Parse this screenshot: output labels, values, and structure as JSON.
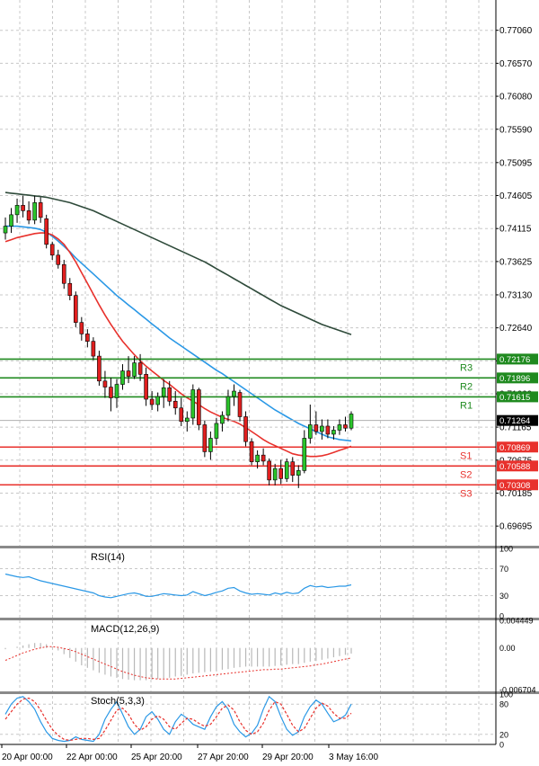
{
  "chart_data": [
    {
      "type": "candlestick",
      "pane": "price",
      "price_ticks": [
        "0.77060",
        "0.76570",
        "0.76080",
        "0.75590",
        "0.75095",
        "0.74605",
        "0.74115",
        "0.73625",
        "0.73130",
        "0.72640",
        "0.72150",
        "0.71660",
        "0.71165",
        "0.70675",
        "0.70185",
        "0.69695"
      ],
      "ylim": [
        0.6943,
        0.7751
      ],
      "x_labels": [
        "20 Apr 00:00",
        "22 Apr 00:00",
        "25 Apr 20:00",
        "27 Apr 20:00",
        "29 Apr 20:00",
        "3 May 16:00"
      ],
      "current_price": "0.71264",
      "candles": [
        {
          "o": 0.7405,
          "h": 0.7428,
          "l": 0.7395,
          "c": 0.7415
        },
        {
          "o": 0.7415,
          "h": 0.7442,
          "l": 0.7405,
          "c": 0.7432
        },
        {
          "o": 0.7432,
          "h": 0.7456,
          "l": 0.742,
          "c": 0.7446
        },
        {
          "o": 0.7446,
          "h": 0.746,
          "l": 0.7428,
          "c": 0.7438
        },
        {
          "o": 0.7438,
          "h": 0.7452,
          "l": 0.7418,
          "c": 0.7424
        },
        {
          "o": 0.7424,
          "h": 0.746,
          "l": 0.7418,
          "c": 0.745
        },
        {
          "o": 0.745,
          "h": 0.7458,
          "l": 0.742,
          "c": 0.7428
        },
        {
          "o": 0.7426,
          "h": 0.7432,
          "l": 0.7382,
          "c": 0.7388
        },
        {
          "o": 0.7388,
          "h": 0.7392,
          "l": 0.7365,
          "c": 0.7372
        },
        {
          "o": 0.7372,
          "h": 0.738,
          "l": 0.7352,
          "c": 0.7358
        },
        {
          "o": 0.7358,
          "h": 0.7365,
          "l": 0.7322,
          "c": 0.733
        },
        {
          "o": 0.733,
          "h": 0.7338,
          "l": 0.7305,
          "c": 0.7312
        },
        {
          "o": 0.7312,
          "h": 0.7318,
          "l": 0.7265,
          "c": 0.7272
        },
        {
          "o": 0.7272,
          "h": 0.728,
          "l": 0.7245,
          "c": 0.7255
        },
        {
          "o": 0.7255,
          "h": 0.7262,
          "l": 0.7235,
          "c": 0.7244
        },
        {
          "o": 0.7244,
          "h": 0.725,
          "l": 0.7216,
          "c": 0.7222
        },
        {
          "o": 0.7222,
          "h": 0.723,
          "l": 0.7178,
          "c": 0.7185
        },
        {
          "o": 0.7185,
          "h": 0.72,
          "l": 0.716,
          "c": 0.7176
        },
        {
          "o": 0.7176,
          "h": 0.719,
          "l": 0.714,
          "c": 0.716
        },
        {
          "o": 0.716,
          "h": 0.7188,
          "l": 0.7145,
          "c": 0.718
        },
        {
          "o": 0.718,
          "h": 0.721,
          "l": 0.7172,
          "c": 0.72
        },
        {
          "o": 0.72,
          "h": 0.7222,
          "l": 0.7182,
          "c": 0.7192
        },
        {
          "o": 0.7192,
          "h": 0.7222,
          "l": 0.7188,
          "c": 0.7212
        },
        {
          "o": 0.7212,
          "h": 0.7225,
          "l": 0.7185,
          "c": 0.7195
        },
        {
          "o": 0.7195,
          "h": 0.7205,
          "l": 0.7148,
          "c": 0.7158
        },
        {
          "o": 0.7158,
          "h": 0.717,
          "l": 0.7142,
          "c": 0.715
        },
        {
          "o": 0.715,
          "h": 0.7168,
          "l": 0.714,
          "c": 0.7162
        },
        {
          "o": 0.7162,
          "h": 0.7188,
          "l": 0.7145,
          "c": 0.7175
        },
        {
          "o": 0.7175,
          "h": 0.7185,
          "l": 0.7148,
          "c": 0.7155
        },
        {
          "o": 0.7155,
          "h": 0.717,
          "l": 0.7135,
          "c": 0.7145
        },
        {
          "o": 0.7145,
          "h": 0.716,
          "l": 0.7118,
          "c": 0.7125
        },
        {
          "o": 0.7125,
          "h": 0.714,
          "l": 0.711,
          "c": 0.713
        },
        {
          "o": 0.713,
          "h": 0.718,
          "l": 0.712,
          "c": 0.7172
        },
        {
          "o": 0.7172,
          "h": 0.7175,
          "l": 0.7112,
          "c": 0.712
        },
        {
          "o": 0.712,
          "h": 0.7126,
          "l": 0.7072,
          "c": 0.708
        },
        {
          "o": 0.708,
          "h": 0.711,
          "l": 0.7068,
          "c": 0.71
        },
        {
          "o": 0.71,
          "h": 0.713,
          "l": 0.709,
          "c": 0.7122
        },
        {
          "o": 0.7122,
          "h": 0.714,
          "l": 0.711,
          "c": 0.7134
        },
        {
          "o": 0.7134,
          "h": 0.7172,
          "l": 0.7125,
          "c": 0.7162
        },
        {
          "o": 0.7162,
          "h": 0.718,
          "l": 0.7148,
          "c": 0.717
        },
        {
          "o": 0.7168,
          "h": 0.7172,
          "l": 0.7125,
          "c": 0.7132
        },
        {
          "o": 0.7132,
          "h": 0.714,
          "l": 0.7088,
          "c": 0.7095
        },
        {
          "o": 0.7095,
          "h": 0.71,
          "l": 0.706,
          "c": 0.7065
        },
        {
          "o": 0.7065,
          "h": 0.7082,
          "l": 0.7055,
          "c": 0.7075
        },
        {
          "o": 0.7075,
          "h": 0.7085,
          "l": 0.706,
          "c": 0.7066
        },
        {
          "o": 0.7066,
          "h": 0.707,
          "l": 0.703,
          "c": 0.7038
        },
        {
          "o": 0.7038,
          "h": 0.7062,
          "l": 0.703,
          "c": 0.7055
        },
        {
          "o": 0.7055,
          "h": 0.7068,
          "l": 0.7032,
          "c": 0.704
        },
        {
          "o": 0.704,
          "h": 0.707,
          "l": 0.7035,
          "c": 0.7065
        },
        {
          "o": 0.7065,
          "h": 0.7072,
          "l": 0.7035,
          "c": 0.7045
        },
        {
          "o": 0.7045,
          "h": 0.706,
          "l": 0.7026,
          "c": 0.7052
        },
        {
          "o": 0.7052,
          "h": 0.7112,
          "l": 0.7048,
          "c": 0.71
        },
        {
          "o": 0.71,
          "h": 0.715,
          "l": 0.7092,
          "c": 0.712
        },
        {
          "o": 0.712,
          "h": 0.714,
          "l": 0.7105,
          "c": 0.711
        },
        {
          "o": 0.711,
          "h": 0.7128,
          "l": 0.7098,
          "c": 0.7118
        },
        {
          "o": 0.7118,
          "h": 0.7128,
          "l": 0.71,
          "c": 0.7106
        },
        {
          "o": 0.7106,
          "h": 0.7118,
          "l": 0.7098,
          "c": 0.7112
        },
        {
          "o": 0.7112,
          "h": 0.7128,
          "l": 0.7105,
          "c": 0.712
        },
        {
          "o": 0.712,
          "h": 0.7132,
          "l": 0.711,
          "c": 0.7115
        },
        {
          "o": 0.7115,
          "h": 0.714,
          "l": 0.7112,
          "c": 0.7136
        }
      ],
      "moving_averages": [
        {
          "color": "#2e4a3a",
          "values": [
            0.7465,
            0.7464,
            0.7463,
            0.7462,
            0.7461,
            0.746,
            0.7459,
            0.7458,
            0.7456,
            0.7454,
            0.7452,
            0.745,
            0.7447,
            0.7444,
            0.7441,
            0.7438,
            0.7434,
            0.743,
            0.7426,
            0.7422,
            0.7418,
            0.7414,
            0.741,
            0.7406,
            0.7402,
            0.7398,
            0.7394,
            0.739,
            0.7386,
            0.7382,
            0.7378,
            0.7374,
            0.737,
            0.7366,
            0.7362,
            0.7357,
            0.7352,
            0.7347,
            0.7342,
            0.7337,
            0.7332,
            0.7327,
            0.7322,
            0.7317,
            0.7312,
            0.7307,
            0.7302,
            0.7297,
            0.7293,
            0.7289,
            0.7285,
            0.7281,
            0.7277,
            0.7273,
            0.7269,
            0.7266,
            0.7263,
            0.726,
            0.7257,
            0.7254
          ]
        },
        {
          "color": "#2a98e6",
          "values": [
            0.7415,
            0.7415,
            0.7415,
            0.7414,
            0.7413,
            0.7412,
            0.741,
            0.7406,
            0.74,
            0.7393,
            0.7385,
            0.7377,
            0.7368,
            0.736,
            0.7352,
            0.7344,
            0.7336,
            0.7328,
            0.732,
            0.7312,
            0.7305,
            0.7298,
            0.7291,
            0.7284,
            0.7277,
            0.727,
            0.7263,
            0.7256,
            0.7249,
            0.7243,
            0.7237,
            0.7231,
            0.7225,
            0.7219,
            0.7213,
            0.7207,
            0.7201,
            0.7196,
            0.719,
            0.7184,
            0.7178,
            0.7172,
            0.7166,
            0.716,
            0.7154,
            0.7148,
            0.7142,
            0.7137,
            0.7132,
            0.7127,
            0.7122,
            0.7118,
            0.7114,
            0.711,
            0.7106,
            0.7102,
            0.71,
            0.7098,
            0.7097,
            0.7096
          ]
        },
        {
          "color": "#e8312c",
          "values": [
            0.7392,
            0.7395,
            0.7398,
            0.74,
            0.7402,
            0.7404,
            0.7405,
            0.7405,
            0.7402,
            0.7396,
            0.7388,
            0.7376,
            0.7362,
            0.7346,
            0.733,
            0.7314,
            0.7298,
            0.7283,
            0.7269,
            0.7256,
            0.7244,
            0.7234,
            0.7224,
            0.7215,
            0.7207,
            0.72,
            0.7193,
            0.7186,
            0.718,
            0.7173,
            0.7166,
            0.716,
            0.7155,
            0.715,
            0.7144,
            0.7139,
            0.7135,
            0.7131,
            0.7128,
            0.7125,
            0.7121,
            0.7116,
            0.711,
            0.7104,
            0.7098,
            0.7093,
            0.7089,
            0.7085,
            0.7081,
            0.7077,
            0.7075,
            0.7074,
            0.7073,
            0.7073,
            0.7074,
            0.7076,
            0.7079,
            0.7082,
            0.7085,
            0.7088
          ]
        }
      ],
      "levels": [
        {
          "label": "R3",
          "value": "0.72176",
          "price": 0.72176,
          "type": "resistance"
        },
        {
          "label": "R2",
          "value": "0.71896",
          "price": 0.71896,
          "type": "resistance"
        },
        {
          "label": "R1",
          "value": "0.71615",
          "price": 0.71615,
          "type": "resistance"
        },
        {
          "label": "S1",
          "value": "0.70869",
          "price": 0.70869,
          "type": "support"
        },
        {
          "label": "S2",
          "value": "0.70588",
          "price": 0.70588,
          "type": "support"
        },
        {
          "label": "S3",
          "value": "0.70308",
          "price": 0.70308,
          "type": "support"
        }
      ]
    },
    {
      "type": "line",
      "pane": "rsi",
      "title": "RSI(14)",
      "ticks": [
        "100",
        "70",
        "30",
        "0"
      ],
      "ylim": [
        0,
        100
      ],
      "series": [
        {
          "color": "#2a98e6",
          "values": [
            62,
            60,
            58,
            57,
            58,
            55,
            52,
            50,
            48,
            46,
            44,
            42,
            40,
            38,
            36,
            34,
            30,
            28,
            27,
            29,
            31,
            33,
            34,
            32,
            29,
            29,
            31,
            33,
            32,
            31,
            30,
            31,
            36,
            33,
            30,
            32,
            35,
            37,
            41,
            42,
            37,
            34,
            32,
            33,
            32,
            31,
            34,
            32,
            35,
            33,
            34,
            41,
            45,
            43,
            44,
            42,
            43,
            44,
            44,
            46
          ]
        }
      ]
    },
    {
      "type": "line+histogram",
      "pane": "macd",
      "title": "MACD(12,26,9)",
      "ticks": [
        "0.004449",
        "0.00",
        "-0.006704"
      ],
      "ylim": [
        -0.006704,
        0.004449
      ],
      "histogram": [
        -0.0002,
        0.0,
        0.0002,
        0.0004,
        0.0006,
        0.0008,
        0.0008,
        0.0006,
        0.0002,
        -0.0004,
        -0.001,
        -0.0016,
        -0.0022,
        -0.0028,
        -0.0032,
        -0.0036,
        -0.004,
        -0.0043,
        -0.0046,
        -0.0048,
        -0.005,
        -0.0051,
        -0.0052,
        -0.0052,
        -0.0052,
        -0.0051,
        -0.005,
        -0.0049,
        -0.0048,
        -0.0046,
        -0.0045,
        -0.0043,
        -0.0041,
        -0.004,
        -0.0039,
        -0.0038,
        -0.0037,
        -0.0035,
        -0.0034,
        -0.0032,
        -0.0031,
        -0.003,
        -0.003,
        -0.003,
        -0.003,
        -0.003,
        -0.0029,
        -0.0028,
        -0.0027,
        -0.0026,
        -0.0026,
        -0.0024,
        -0.0022,
        -0.0021,
        -0.0019,
        -0.0017,
        -0.0015,
        -0.0013,
        -0.0011,
        -0.0009
      ],
      "signal": {
        "color": "#e8312c",
        "values": [
          -0.002,
          -0.0016,
          -0.0012,
          -0.0008,
          -0.0005,
          -0.0002,
          0.0,
          0.0002,
          0.0002,
          0.0001,
          -0.0001,
          -0.0003,
          -0.0006,
          -0.001,
          -0.0014,
          -0.0018,
          -0.0022,
          -0.0026,
          -0.003,
          -0.0034,
          -0.0038,
          -0.0041,
          -0.0044,
          -0.0046,
          -0.0048,
          -0.0049,
          -0.005,
          -0.005,
          -0.005,
          -0.005,
          -0.0049,
          -0.0048,
          -0.0047,
          -0.0046,
          -0.0045,
          -0.0044,
          -0.0043,
          -0.0042,
          -0.0041,
          -0.004,
          -0.0039,
          -0.0038,
          -0.0037,
          -0.0036,
          -0.0035,
          -0.0035,
          -0.0034,
          -0.0034,
          -0.0033,
          -0.0032,
          -0.0031,
          -0.003,
          -0.0029,
          -0.0027,
          -0.0026,
          -0.0024,
          -0.0022,
          -0.002,
          -0.0018,
          -0.0016
        ]
      }
    },
    {
      "type": "line",
      "pane": "stoch",
      "title": "Stoch(5,3,3)",
      "ticks": [
        "100",
        "80",
        "20",
        "0"
      ],
      "ylim": [
        0,
        100
      ],
      "series": [
        {
          "color": "#2a98e6",
          "values": [
            60,
            80,
            92,
            95,
            85,
            70,
            45,
            25,
            12,
            8,
            6,
            8,
            15,
            10,
            8,
            6,
            20,
            50,
            70,
            85,
            60,
            35,
            20,
            30,
            55,
            65,
            50,
            30,
            20,
            45,
            60,
            52,
            40,
            35,
            30,
            55,
            75,
            85,
            70,
            40,
            25,
            15,
            22,
            38,
            70,
            95,
            85,
            55,
            30,
            18,
            25,
            55,
            75,
            88,
            80,
            62,
            45,
            50,
            58,
            80
          ]
        },
        {
          "color": "#e8312c",
          "values": [
            50,
            65,
            80,
            90,
            92,
            85,
            68,
            48,
            30,
            18,
            10,
            8,
            10,
            12,
            12,
            10,
            12,
            28,
            48,
            68,
            72,
            60,
            40,
            28,
            35,
            50,
            57,
            50,
            35,
            30,
            42,
            52,
            50,
            42,
            36,
            40,
            55,
            72,
            78,
            68,
            45,
            28,
            20,
            25,
            42,
            68,
            85,
            80,
            60,
            38,
            25,
            32,
            52,
            72,
            82,
            76,
            62,
            52,
            52,
            62
          ]
        }
      ]
    }
  ]
}
